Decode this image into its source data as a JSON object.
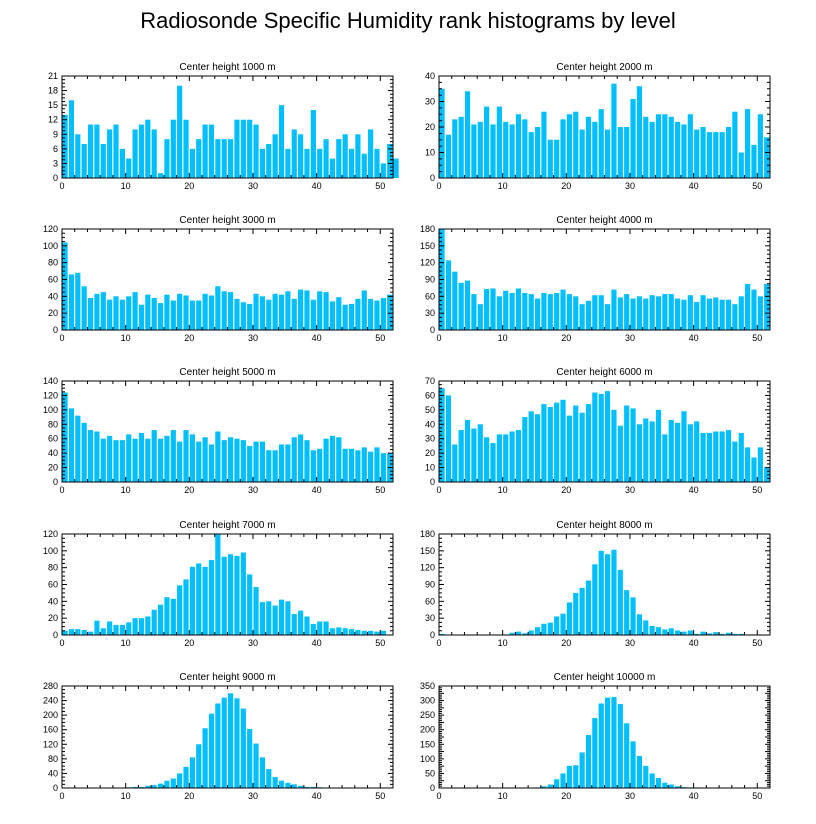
{
  "title": "Radiosonde Specific Humidity rank histograms by level",
  "colors": {
    "bar": "#00BFFF",
    "axis": "#000000",
    "background": "#ffffff"
  },
  "chart_data": [
    {
      "type": "bar",
      "title": "Center height 1000 m",
      "x_ticks": [
        0,
        10,
        20,
        30,
        40,
        50
      ],
      "xlim": [
        0,
        52
      ],
      "ylim": [
        0,
        21
      ],
      "y_ticks": [
        0,
        3,
        6,
        9,
        12,
        15,
        18,
        21
      ],
      "values": [
        13,
        16,
        9,
        7,
        11,
        11,
        7,
        10,
        11,
        6,
        4,
        10,
        11,
        12,
        10,
        1,
        8,
        12,
        19,
        12,
        6,
        8,
        11,
        11,
        8,
        8,
        8,
        12,
        12,
        12,
        11,
        6,
        7,
        9,
        15,
        6,
        10,
        9,
        6,
        14,
        6,
        8,
        4,
        8,
        9,
        6,
        9,
        5,
        10,
        6,
        3,
        7,
        4
      ]
    },
    {
      "type": "bar",
      "title": "Center height 2000 m",
      "x_ticks": [
        0,
        10,
        20,
        30,
        40,
        50
      ],
      "xlim": [
        0,
        52
      ],
      "ylim": [
        0,
        40
      ],
      "y_ticks": [
        0,
        10,
        20,
        30,
        40
      ],
      "values": [
        35,
        17,
        23,
        24,
        34,
        21,
        22,
        28,
        21,
        28,
        22,
        21,
        25,
        23,
        18,
        20,
        26,
        15,
        15,
        23,
        25,
        26,
        19,
        24,
        22,
        27,
        19,
        37,
        20,
        20,
        31,
        36,
        24,
        22,
        25,
        25,
        24,
        22,
        21,
        25,
        19,
        20,
        18,
        18,
        18,
        20,
        26,
        10,
        27,
        13,
        25,
        16
      ]
    },
    {
      "type": "bar",
      "title": "Center height 3000 m",
      "x_ticks": [
        0,
        10,
        20,
        30,
        40,
        50
      ],
      "xlim": [
        0,
        52
      ],
      "ylim": [
        0,
        120
      ],
      "y_ticks": [
        0,
        20,
        40,
        60,
        80,
        100,
        120
      ],
      "values": [
        104,
        66,
        68,
        52,
        38,
        43,
        45,
        36,
        40,
        36,
        40,
        45,
        30,
        42,
        38,
        32,
        42,
        35,
        43,
        41,
        35,
        35,
        43,
        41,
        52,
        46,
        45,
        37,
        33,
        31,
        43,
        40,
        36,
        43,
        42,
        46,
        37,
        48,
        47,
        36,
        46,
        45,
        34,
        39,
        30,
        31,
        37,
        47,
        37,
        35,
        38,
        42
      ]
    },
    {
      "type": "bar",
      "title": "Center height 4000 m",
      "x_ticks": [
        0,
        10,
        20,
        30,
        40,
        50
      ],
      "xlim": [
        0,
        52
      ],
      "ylim": [
        0,
        180
      ],
      "y_ticks": [
        0,
        30,
        60,
        90,
        120,
        150,
        180
      ],
      "values": [
        180,
        124,
        104,
        84,
        88,
        64,
        46,
        73,
        74,
        60,
        70,
        66,
        74,
        66,
        64,
        56,
        66,
        64,
        66,
        72,
        64,
        60,
        46,
        52,
        62,
        62,
        46,
        72,
        58,
        64,
        56,
        60,
        56,
        62,
        60,
        64,
        64,
        56,
        54,
        62,
        50,
        62,
        56,
        58,
        54,
        54,
        46,
        60,
        82,
        72,
        60,
        82
      ]
    },
    {
      "type": "bar",
      "title": "Center height 5000 m",
      "x_ticks": [
        0,
        10,
        20,
        30,
        40,
        50
      ],
      "xlim": [
        0,
        52
      ],
      "ylim": [
        0,
        140
      ],
      "y_ticks": [
        0,
        20,
        40,
        60,
        80,
        100,
        120,
        140
      ],
      "values": [
        124,
        102,
        92,
        82,
        72,
        70,
        60,
        64,
        58,
        58,
        66,
        60,
        68,
        60,
        72,
        60,
        64,
        72,
        56,
        72,
        66,
        56,
        62,
        52,
        70,
        58,
        62,
        60,
        58,
        50,
        56,
        56,
        44,
        44,
        52,
        52,
        62,
        66,
        58,
        44,
        46,
        60,
        64,
        62,
        46,
        46,
        44,
        48,
        42,
        48,
        40,
        40
      ]
    },
    {
      "type": "bar",
      "title": "Center height 6000 m",
      "x_ticks": [
        0,
        10,
        20,
        30,
        40,
        50
      ],
      "xlim": [
        0,
        52
      ],
      "ylim": [
        0,
        70
      ],
      "y_ticks": [
        0,
        10,
        20,
        30,
        40,
        50,
        60,
        70
      ],
      "values": [
        65,
        60,
        26,
        36,
        43,
        37,
        40,
        31,
        27,
        33,
        33,
        35,
        36,
        45,
        49,
        47,
        54,
        52,
        55,
        57,
        46,
        53,
        48,
        54,
        62,
        61,
        63,
        50,
        39,
        53,
        51,
        40,
        44,
        42,
        50,
        33,
        43,
        41,
        49,
        40,
        42,
        34,
        34,
        35,
        35,
        36,
        28,
        34,
        24,
        17,
        24,
        10
      ]
    },
    {
      "type": "bar",
      "title": "Center height 7000 m",
      "x_ticks": [
        0,
        10,
        20,
        30,
        40,
        50
      ],
      "xlim": [
        0,
        52
      ],
      "ylim": [
        0,
        120
      ],
      "y_ticks": [
        0,
        20,
        40,
        60,
        80,
        100,
        120
      ],
      "values": [
        5,
        7,
        7,
        6,
        4,
        17,
        8,
        16,
        12,
        12,
        15,
        20,
        20,
        22,
        30,
        36,
        45,
        43,
        59,
        66,
        81,
        85,
        81,
        89,
        120,
        93,
        96,
        94,
        98,
        72,
        57,
        39,
        40,
        35,
        42,
        40,
        25,
        29,
        22,
        13,
        16,
        16,
        8,
        9,
        8,
        7,
        6,
        5,
        5,
        4,
        5,
        0
      ]
    },
    {
      "type": "bar",
      "title": "Center height 8000 m",
      "x_ticks": [
        0,
        10,
        20,
        30,
        40,
        50
      ],
      "xlim": [
        0,
        52
      ],
      "ylim": [
        0,
        180
      ],
      "y_ticks": [
        0,
        30,
        60,
        90,
        120,
        150,
        180
      ],
      "values": [
        2,
        0,
        0,
        0,
        0,
        0,
        0,
        0,
        0,
        0,
        0,
        4,
        6,
        3,
        8,
        14,
        20,
        22,
        33,
        38,
        58,
        75,
        84,
        97,
        126,
        150,
        144,
        152,
        116,
        80,
        67,
        37,
        26,
        16,
        14,
        10,
        12,
        8,
        6,
        8,
        2,
        6,
        3,
        5,
        2,
        4,
        2,
        2,
        0,
        1,
        0,
        0
      ]
    },
    {
      "type": "bar",
      "title": "Center height 9000 m",
      "x_ticks": [
        0,
        10,
        20,
        30,
        40,
        50
      ],
      "xlim": [
        0,
        52
      ],
      "ylim": [
        0,
        280
      ],
      "y_ticks": [
        0,
        40,
        80,
        120,
        160,
        200,
        240,
        280
      ],
      "values": [
        0,
        0,
        0,
        0,
        0,
        0,
        0,
        0,
        0,
        0,
        2,
        3,
        3,
        6,
        8,
        12,
        20,
        26,
        40,
        58,
        84,
        120,
        164,
        204,
        232,
        248,
        260,
        246,
        218,
        162,
        122,
        84,
        52,
        30,
        20,
        14,
        10,
        6,
        3,
        3,
        2,
        0,
        0,
        0,
        0,
        0,
        0,
        0,
        0,
        0,
        0,
        0
      ]
    },
    {
      "type": "bar",
      "title": "Center height 10000 m",
      "x_ticks": [
        0,
        10,
        20,
        30,
        40,
        50
      ],
      "xlim": [
        0,
        52
      ],
      "ylim": [
        0,
        350
      ],
      "y_ticks": [
        0,
        25,
        50,
        75,
        100,
        125,
        150,
        175,
        200,
        225,
        250,
        275,
        300,
        325,
        350
      ],
      "y_tick_labels": [
        "0",
        "",
        "50",
        "",
        "100",
        "",
        "150",
        "",
        "200",
        "",
        "250",
        "",
        "300",
        "",
        "350"
      ],
      "values": [
        0,
        0,
        0,
        0,
        0,
        0,
        0,
        0,
        0,
        0,
        0,
        0,
        0,
        0,
        0,
        2,
        6,
        12,
        30,
        50,
        76,
        78,
        122,
        182,
        240,
        290,
        310,
        312,
        288,
        222,
        160,
        110,
        76,
        50,
        34,
        18,
        12,
        6,
        3,
        2,
        2,
        0,
        0,
        0,
        0,
        0,
        0,
        0,
        0,
        0,
        0,
        0
      ]
    }
  ]
}
